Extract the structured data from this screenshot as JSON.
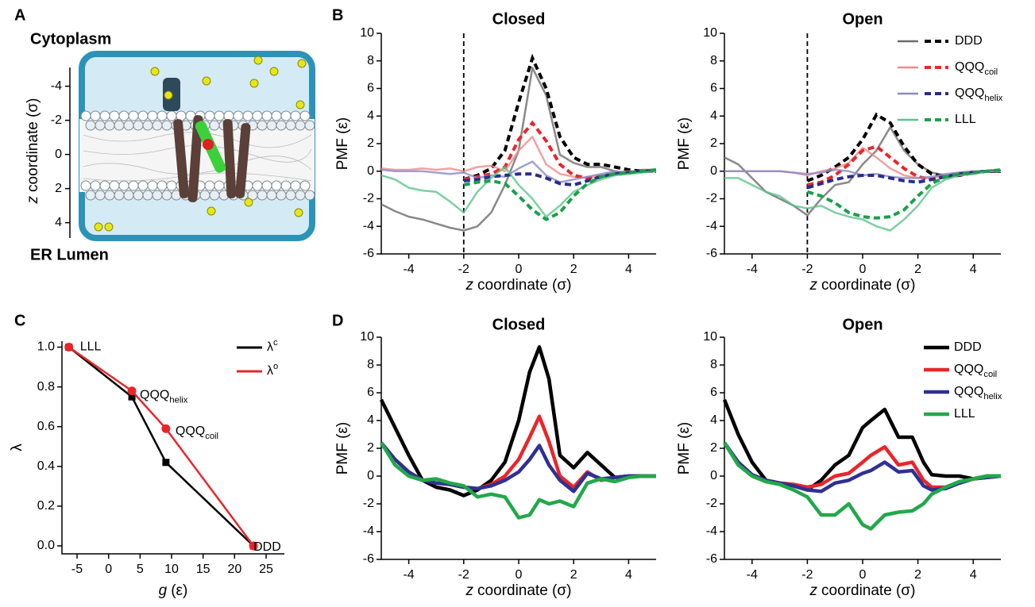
{
  "chart_data": [
    {
      "type": "image",
      "panel": "A",
      "top_label": "Cytoplasm",
      "bottom_label": "ER Lumen",
      "ylabel": {
        "var": "z",
        "text": "coordinate (σ)"
      },
      "ylim": [
        4.9,
        -5.1
      ],
      "yticks": [
        -4,
        -2,
        0,
        2,
        4
      ]
    },
    {
      "type": "line",
      "panel": "B",
      "title": "Closed",
      "xlabel": {
        "var": "z",
        "text": "coordinate (σ)"
      },
      "ylabel": "PMF (ε)",
      "xlim": [
        -5,
        5
      ],
      "ylim": [
        -6,
        10
      ],
      "xticks": [
        -4,
        -2,
        0,
        2,
        4
      ],
      "yticks": [
        -6,
        -4,
        -2,
        0,
        2,
        4,
        6,
        8,
        10
      ],
      "vline": -2,
      "x": [
        -5,
        -4.5,
        -4,
        -3.5,
        -3,
        -2.5,
        -2,
        -1.5,
        -1,
        -0.5,
        0,
        0.5,
        1,
        1.5,
        2,
        2.5,
        3,
        3.5,
        4,
        4.5,
        5
      ],
      "series": [
        {
          "name": "DDD",
          "color": "#6b6b6b",
          "dashed_color": "#000000",
          "values": [
            -2.4,
            -2.9,
            -3.3,
            -3.5,
            -3.8,
            -4.1,
            -4.3,
            -4.0,
            -3.0,
            -1.0,
            1.5,
            7.5,
            5.5,
            1.2,
            0.6,
            0.3,
            0.3,
            0.0,
            -0.2,
            0.1,
            0.1
          ],
          "dashed_values": [
            null,
            null,
            null,
            null,
            null,
            null,
            -0.6,
            -0.3,
            0.2,
            1.5,
            5.0,
            8.2,
            6.0,
            2.5,
            1.0,
            0.5,
            0.5,
            0.3,
            0.1,
            0.0,
            0.0
          ]
        },
        {
          "name": "QQQ",
          "sub": "coil",
          "color": "#f08a8a",
          "dashed_color": "#e8262b",
          "values": [
            0.2,
            0.1,
            0.1,
            0.2,
            0.1,
            0.2,
            0.0,
            0.3,
            0.4,
            0.0,
            1.5,
            2.5,
            0.5,
            -0.2,
            -0.4,
            -0.5,
            -0.3,
            -0.1,
            0.0,
            0.0,
            0.1
          ],
          "dashed_values": [
            null,
            null,
            null,
            null,
            null,
            null,
            -0.6,
            -0.4,
            -0.2,
            0.3,
            2.3,
            3.5,
            2.2,
            0.5,
            -0.3,
            -0.5,
            -0.4,
            -0.2,
            -0.1,
            0,
            0
          ]
        },
        {
          "name": "QQQ",
          "sub": "helix",
          "color": "#8a8ac4",
          "dashed_color": "#2b2b8c",
          "values": [
            0.1,
            0,
            0,
            0,
            -0.1,
            -0.2,
            -0.1,
            -0.5,
            -0.3,
            -0.4,
            0.2,
            0.7,
            -0.3,
            -0.8,
            -0.6,
            -0.4,
            -0.2,
            0,
            -0.1,
            0,
            0
          ],
          "dashed_values": [
            null,
            null,
            null,
            null,
            null,
            null,
            -0.7,
            -0.6,
            -0.4,
            -0.3,
            -0.2,
            -0.2,
            -0.5,
            -0.9,
            -1.0,
            -0.7,
            -0.4,
            -0.2,
            -0.1,
            0,
            0
          ]
        },
        {
          "name": "LLL",
          "color": "#5cc48a",
          "dashed_color": "#1aa04a",
          "values": [
            -0.3,
            -0.6,
            -1.2,
            -1.4,
            -1.5,
            -2.2,
            -3.0,
            -1.5,
            -0.5,
            0.3,
            -1.0,
            -2.0,
            -3.3,
            -2.5,
            -1.5,
            -1.0,
            -0.6,
            -0.3,
            -0.2,
            -0.1,
            0
          ],
          "dashed_values": [
            null,
            null,
            null,
            null,
            null,
            null,
            -1.0,
            -0.8,
            -0.7,
            -0.9,
            -1.8,
            -2.8,
            -3.5,
            -3.0,
            -1.8,
            -0.9,
            -0.4,
            -0.2,
            -0.1,
            0,
            0.1
          ]
        }
      ]
    },
    {
      "type": "line",
      "title": "Open",
      "xlabel": {
        "var": "z",
        "text": "coordinate (σ)"
      },
      "ylabel": "PMF (ε)",
      "xlim": [
        -5,
        5
      ],
      "ylim": [
        -6,
        10
      ],
      "xticks": [
        -4,
        -2,
        0,
        2,
        4
      ],
      "yticks": [
        -6,
        -4,
        -2,
        0,
        2,
        4,
        6,
        8,
        10
      ],
      "vline": -2,
      "legend": "upper right",
      "x": [
        -5,
        -4.5,
        -4,
        -3.5,
        -3,
        -2.5,
        -2,
        -1.5,
        -1,
        -0.5,
        0,
        0.5,
        1,
        1.5,
        2,
        2.5,
        3,
        3.5,
        4,
        4.5,
        5
      ],
      "series": [
        {
          "name": "DDD",
          "color": "#6b6b6b",
          "dashed_color": "#000000",
          "values": [
            1.0,
            0.5,
            -0.5,
            -1.5,
            -2.0,
            -2.5,
            -3.2,
            -2.0,
            -1.0,
            -0.8,
            0.5,
            1.5,
            3.2,
            1.5,
            0.5,
            -0.1,
            -0.3,
            -0.3,
            -0.2,
            0,
            0
          ],
          "dashed_values": [
            null,
            null,
            null,
            null,
            null,
            null,
            -0.7,
            -0.3,
            0.3,
            1.0,
            2.3,
            4.1,
            3.5,
            1.8,
            0.5,
            -0.2,
            -0.4,
            -0.3,
            -0.1,
            0,
            0
          ]
        },
        {
          "name": "QQQ",
          "sub": "coil",
          "color": "#f08a8a",
          "dashed_color": "#e8262b",
          "values": [
            0,
            0,
            0,
            0,
            0,
            -0.1,
            -0.3,
            0,
            0.2,
            0.6,
            1.7,
            1.0,
            0.2,
            -0.3,
            -0.5,
            -0.5,
            -0.3,
            -0.1,
            0,
            0,
            0
          ],
          "dashed_values": [
            null,
            null,
            null,
            null,
            null,
            null,
            -1.0,
            -0.8,
            -0.3,
            0.5,
            1.5,
            1.8,
            1.0,
            0.2,
            -0.4,
            -0.6,
            -0.4,
            -0.2,
            -0.1,
            0,
            0
          ]
        },
        {
          "name": "QQQ",
          "sub": "helix",
          "color": "#8a8ac4",
          "dashed_color": "#2b2b8c",
          "values": [
            0,
            0,
            0,
            0,
            0,
            -0.1,
            -0.2,
            -0.1,
            0.1,
            0,
            -0.3,
            -0.2,
            -0.4,
            -0.5,
            -0.5,
            -0.4,
            -0.2,
            -0.1,
            0,
            0,
            0
          ],
          "dashed_values": [
            null,
            null,
            null,
            null,
            null,
            null,
            -1.2,
            -0.9,
            -0.6,
            -0.4,
            -0.3,
            -0.3,
            -0.5,
            -0.7,
            -0.8,
            -0.6,
            -0.4,
            -0.2,
            -0.1,
            0,
            0
          ]
        },
        {
          "name": "LLL",
          "color": "#5cc48a",
          "dashed_color": "#1aa04a",
          "values": [
            -0.5,
            -0.5,
            -1.0,
            -1.5,
            -1.8,
            -2.5,
            -2.7,
            -2.5,
            -3.0,
            -3.3,
            -3.5,
            -4.0,
            -4.3,
            -3.5,
            -2.5,
            -1.2,
            -0.6,
            -0.3,
            -0.2,
            0,
            0
          ],
          "dashed_values": [
            null,
            null,
            null,
            null,
            null,
            null,
            -1.5,
            -1.8,
            -2.3,
            -3.0,
            -3.3,
            -3.4,
            -3.3,
            -2.8,
            -1.8,
            -0.9,
            -0.4,
            -0.2,
            -0.1,
            0,
            0.1
          ]
        }
      ]
    },
    {
      "type": "line",
      "panel": "C",
      "xlabel": {
        "var": "g",
        "text": "(ε)"
      },
      "ylabel": "λ",
      "legend": "upper right",
      "xlim": [
        -7.4,
        27.9
      ],
      "ylim": [
        -0.04,
        1.03
      ],
      "xticks": [
        -5,
        0,
        5,
        10,
        15,
        20,
        25
      ],
      "yticks": [
        {
          "value": 0,
          "label": "0.0"
        },
        {
          "value": 0.2,
          "label": "0.2"
        },
        {
          "value": 0.4,
          "label": "0.4"
        },
        {
          "value": 0.6,
          "label": "0.6"
        },
        {
          "value": 0.8,
          "label": "0.8"
        },
        {
          "value": 1,
          "label": "1.0"
        }
      ],
      "x": [
        -6.3,
        3.7,
        9.1,
        23
      ],
      "point_labels": [
        {
          "name": "LLL"
        },
        {
          "name": "QQQ",
          "sub": "helix"
        },
        {
          "name": "QQQ",
          "sub": "coil"
        },
        {
          "name": "DDD"
        }
      ],
      "series": [
        {
          "name": "λ",
          "sup": "c",
          "color": "#000000",
          "marker": "square",
          "values": [
            1.0,
            0.75,
            0.42,
            0
          ]
        },
        {
          "name": "λ",
          "sup": "o",
          "color": "#e8262b",
          "marker": "circle",
          "values": [
            1.0,
            0.78,
            0.59,
            0
          ]
        }
      ]
    },
    {
      "type": "line",
      "panel": "D",
      "title": "Closed",
      "xlabel": {
        "var": "z",
        "text": "coordinate (σ)"
      },
      "ylabel": "PMF (ε)",
      "xlim": [
        -5,
        5
      ],
      "ylim": [
        -6,
        10
      ],
      "xticks": [
        -4,
        -2,
        0,
        2,
        4
      ],
      "yticks": [
        -6,
        -4,
        -2,
        0,
        2,
        4,
        6,
        8,
        10
      ],
      "x": [
        -5,
        -4.5,
        -4,
        -3.5,
        -3,
        -2.5,
        -2,
        -1.5,
        -1,
        -0.5,
        0,
        0.4,
        0.75,
        1.1,
        1.5,
        2,
        2.5,
        3,
        3.5,
        4,
        4.5,
        5
      ],
      "series": [
        {
          "name": "DDD",
          "color": "#000000",
          "values": [
            5.5,
            3.5,
            1.5,
            -0.3,
            -0.8,
            -1.0,
            -1.4,
            -1.0,
            -0.3,
            1.0,
            4.0,
            7.5,
            9.3,
            7.0,
            1.5,
            0.6,
            1.7,
            0.8,
            -0.1,
            0,
            0,
            0
          ]
        },
        {
          "name": "QQQ",
          "sub": "coil",
          "color": "#e8262b",
          "values": [
            2.4,
            1.2,
            0.3,
            -0.3,
            -0.5,
            -0.6,
            -0.8,
            -0.9,
            -0.6,
            0,
            1.2,
            2.8,
            4.3,
            2.5,
            0.0,
            -0.8,
            0.3,
            -0.3,
            -0.1,
            0,
            0,
            0
          ]
        },
        {
          "name": "QQQ",
          "sub": "helix",
          "color": "#2e3192",
          "values": [
            2.4,
            1.2,
            0.3,
            -0.3,
            -0.5,
            -0.6,
            -0.8,
            -0.9,
            -0.7,
            -0.3,
            0.3,
            1.2,
            2.2,
            0.8,
            -0.3,
            -1.1,
            0.2,
            -0.2,
            -0.1,
            0,
            0,
            0
          ]
        },
        {
          "name": "LLL",
          "color": "#22a84a",
          "values": [
            2.4,
            0.8,
            0,
            -0.3,
            -0.2,
            -0.5,
            -0.7,
            -1.5,
            -1.3,
            -1.5,
            -3.0,
            -2.8,
            -1.7,
            -2.0,
            -1.8,
            -2.2,
            -0.5,
            -0.2,
            -0.4,
            -0.1,
            0,
            0
          ]
        }
      ]
    },
    {
      "type": "line",
      "title": "Open",
      "xlabel": {
        "var": "z",
        "text": "coordinate (σ)"
      },
      "ylabel": "PMF (ε)",
      "legend": "upper right",
      "xlim": [
        -5,
        5
      ],
      "ylim": [
        -6,
        10
      ],
      "xticks": [
        -4,
        -2,
        0,
        2,
        4
      ],
      "yticks": [
        -6,
        -4,
        -2,
        0,
        2,
        4,
        6,
        8,
        10
      ],
      "x": [
        -5,
        -4.5,
        -4,
        -3.5,
        -3,
        -2.5,
        -2,
        -1.5,
        -1,
        -0.5,
        0,
        0.3,
        0.8,
        1.3,
        1.8,
        2.2,
        2.5,
        3,
        3.5,
        4,
        4.5,
        5
      ],
      "series": [
        {
          "name": "DDD",
          "color": "#000000",
          "values": [
            5.5,
            3.0,
            1.0,
            -0.3,
            -0.5,
            -0.7,
            -1.0,
            -0.3,
            0.8,
            1.5,
            3.5,
            4.0,
            4.8,
            2.8,
            2.8,
            1.0,
            0.1,
            0,
            0,
            -0.2,
            0,
            0
          ]
        },
        {
          "name": "QQQ",
          "sub": "coil",
          "color": "#e8262b",
          "values": [
            2.4,
            1.0,
            0.1,
            -0.3,
            -0.5,
            -0.6,
            -0.8,
            -0.6,
            0,
            0.2,
            1.0,
            1.5,
            2.1,
            0.8,
            1.0,
            -0.3,
            -0.8,
            -0.8,
            -0.5,
            -0.2,
            -0.1,
            0
          ]
        },
        {
          "name": "QQQ",
          "sub": "helix",
          "color": "#2e3192",
          "values": [
            2.4,
            1.0,
            0.1,
            -0.3,
            -0.5,
            -0.7,
            -1.0,
            -1.1,
            -0.5,
            -0.3,
            0.2,
            0.4,
            1.0,
            0.3,
            0.4,
            -0.7,
            -1.0,
            -0.9,
            -0.5,
            -0.2,
            -0.1,
            0
          ]
        },
        {
          "name": "LLL",
          "color": "#22a84a",
          "values": [
            2.4,
            0.8,
            0,
            -0.4,
            -0.6,
            -1.0,
            -1.5,
            -2.8,
            -2.8,
            -2.0,
            -3.5,
            -3.8,
            -2.8,
            -2.6,
            -2.5,
            -2.0,
            -1.3,
            -0.8,
            -0.4,
            -0.2,
            0,
            0
          ]
        }
      ]
    }
  ]
}
